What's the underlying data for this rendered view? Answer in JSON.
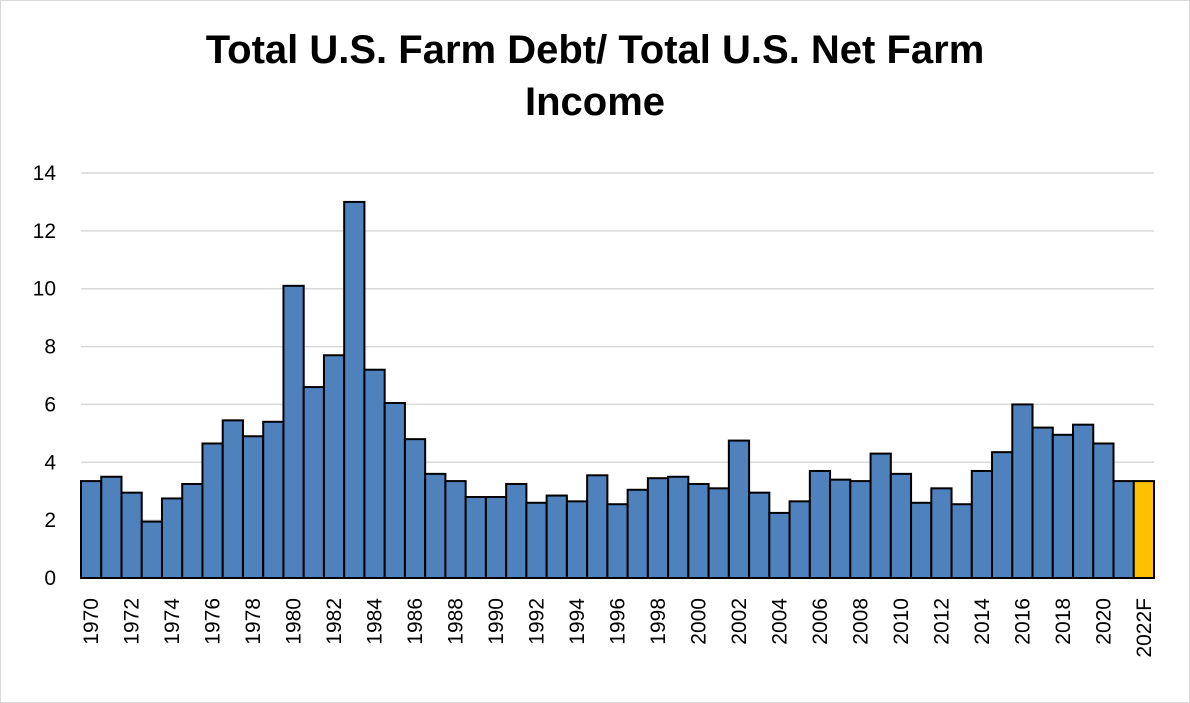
{
  "chart_data": {
    "type": "bar",
    "title_line1": "Total U.S. Farm Debt/ Total U.S. Net Farm",
    "title_line2": "Income",
    "xlabel": "",
    "ylabel": "",
    "ylim": [
      0,
      14
    ],
    "yticks": [
      "0",
      "2",
      "4",
      "6",
      "8",
      "10",
      "12",
      "14"
    ],
    "grid": "horizontal",
    "legend": "none",
    "colors": {
      "bar": "#4f81bd",
      "forecast": "#ffc000",
      "grid": "#d9d9d9",
      "outline": "#000000"
    },
    "categories": [
      "1970",
      "1971",
      "1972",
      "1973",
      "1974",
      "1975",
      "1976",
      "1977",
      "1978",
      "1979",
      "1980",
      "1981",
      "1982",
      "1983",
      "1984",
      "1985",
      "1986",
      "1987",
      "1988",
      "1989",
      "1990",
      "1991",
      "1992",
      "1993",
      "1994",
      "1995",
      "1996",
      "1997",
      "1998",
      "1999",
      "2000",
      "2001",
      "2002",
      "2003",
      "2004",
      "2005",
      "2006",
      "2007",
      "2008",
      "2009",
      "2010",
      "2011",
      "2012",
      "2013",
      "2014",
      "2015",
      "2016",
      "2017",
      "2018",
      "2019",
      "2020",
      "2021",
      "2022F"
    ],
    "x_tick_labels": [
      "1970",
      "",
      "1972",
      "",
      "1974",
      "",
      "1976",
      "",
      "1978",
      "",
      "1980",
      "",
      "1982",
      "",
      "1984",
      "",
      "1986",
      "",
      "1988",
      "",
      "1990",
      "",
      "1992",
      "",
      "1994",
      "",
      "1996",
      "",
      "1998",
      "",
      "2000",
      "",
      "2002",
      "",
      "2004",
      "",
      "2006",
      "",
      "2008",
      "",
      "2010",
      "",
      "2012",
      "",
      "2014",
      "",
      "2016",
      "",
      "2018",
      "",
      "2020",
      "",
      "2022F"
    ],
    "values": [
      3.35,
      3.5,
      2.95,
      1.95,
      2.75,
      3.25,
      4.65,
      5.45,
      4.9,
      5.4,
      10.1,
      6.6,
      7.7,
      13.0,
      7.2,
      6.05,
      4.8,
      3.6,
      3.35,
      2.8,
      2.8,
      3.25,
      2.6,
      2.85,
      2.65,
      3.55,
      2.55,
      3.05,
      3.45,
      3.5,
      3.25,
      3.1,
      4.75,
      2.95,
      2.25,
      2.65,
      3.7,
      3.4,
      3.35,
      4.3,
      3.6,
      2.6,
      3.1,
      2.55,
      3.7,
      4.35,
      6.0,
      5.2,
      4.95,
      5.3,
      4.65,
      3.35,
      3.35
    ],
    "highlight_index": 52
  }
}
